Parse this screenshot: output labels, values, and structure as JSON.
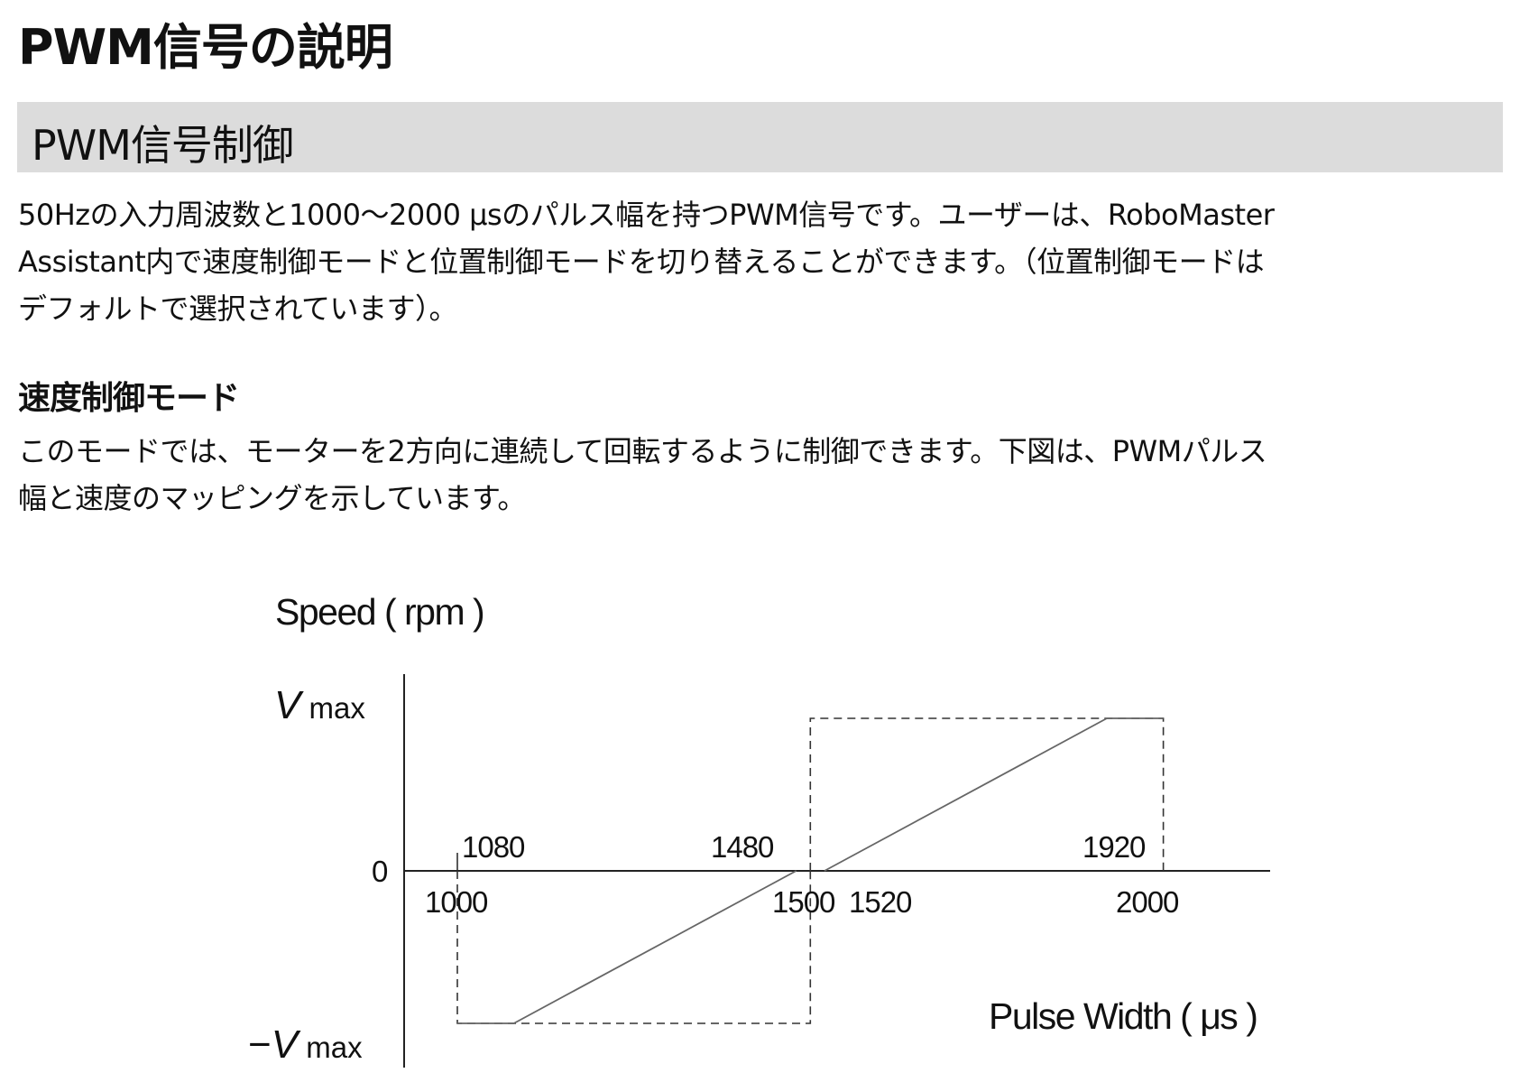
{
  "page_title": "PWM信号の説明",
  "section_title": "PWM信号制御",
  "intro_lines": [
    "50Hzの入力周波数と1000〜2000 μsのパルス幅を持つPWM信号です。ユーザーは、RoboMaster",
    "Assistant内で速度制御モードと位置制御モードを切り替えることができます。（位置制御モードは",
    "デフォルトで選択されています）。"
  ],
  "subsection_title": "速度制御モード",
  "speed_lines": [
    "このモードでは、モーターを2方向に連続して回転するように制御できます。下図は、PWMパルス",
    "幅と速度のマッピングを示しています。"
  ],
  "chart_data": {
    "type": "line",
    "ylabel": "Speed ( rpm )",
    "xlabel": "Pulse Width ( μs )",
    "y_ticks": [
      {
        "value": 1,
        "symbol": "V",
        "sub": "max",
        "prefix": ""
      },
      {
        "value": 0,
        "label": "0"
      },
      {
        "value": -1,
        "symbol": "V",
        "sub": "max",
        "prefix": "−"
      }
    ],
    "x_tick_labels_above": [
      "1080",
      "1480",
      "1920"
    ],
    "x_tick_labels_below": [
      "1000",
      "1500",
      "1520",
      "2000"
    ],
    "xlim": [
      1000,
      2000
    ],
    "ylim_units": "Vmax",
    "series": [
      {
        "x": [
          1000,
          1080,
          1480
        ],
        "y": [
          -1,
          -1,
          0
        ]
      },
      {
        "x": [
          1520,
          1920,
          2000
        ],
        "y": [
          0,
          1,
          1
        ]
      }
    ],
    "guides": [
      {
        "x": [
          1000,
          1000,
          1500,
          1500
        ],
        "y": [
          0,
          -1,
          -1,
          0
        ],
        "style": "dashed"
      },
      {
        "x": [
          1500,
          1500,
          2000,
          2000
        ],
        "y": [
          0,
          1,
          1,
          0
        ],
        "style": "dashed"
      }
    ],
    "line_color": "#666666",
    "axis_color": "#222222"
  }
}
